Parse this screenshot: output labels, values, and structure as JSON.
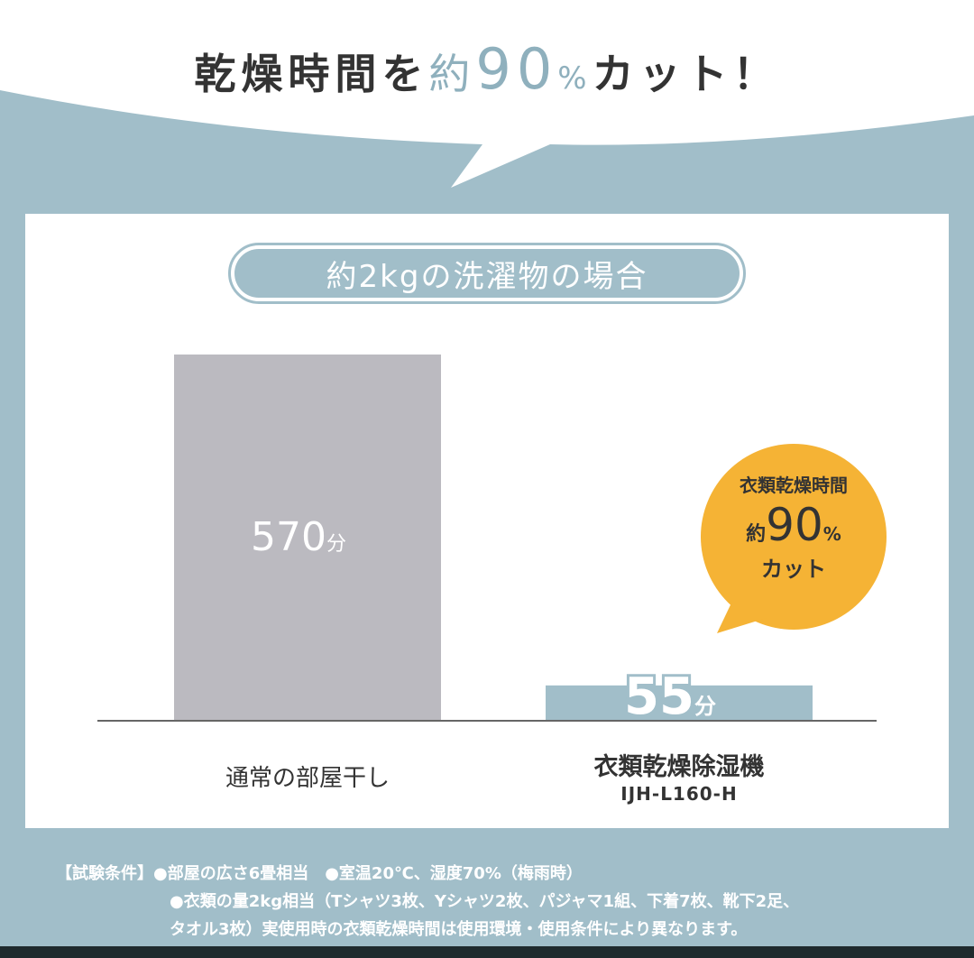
{
  "headline": {
    "prefix": "乾燥時間を",
    "approx": "約",
    "number": "90",
    "percent": "%",
    "suffix": "カット！"
  },
  "condition_label": "約2kgの洗濯物の場合",
  "chart_data": {
    "type": "bar",
    "categories": [
      "通常の部屋干し",
      "衣類乾燥除湿機"
    ],
    "category_sublabels": [
      "",
      "IJH-L160-H"
    ],
    "values": [
      570,
      55
    ],
    "unit": "分",
    "value_labels": [
      "570",
      "55"
    ],
    "colors": [
      "#bbbac0",
      "#a1bec9"
    ],
    "ylim": [
      0,
      570
    ],
    "grid": false
  },
  "callout": {
    "line1": "衣類乾燥時間",
    "approx": "約",
    "number": "90",
    "percent": "%",
    "line3": "カット",
    "color": "#f5b335"
  },
  "footnote": {
    "label": "【試験条件】",
    "line1": "●部屋の広さ6畳相当　●室温20℃、湿度70%（梅雨時）",
    "line2": "●衣類の量2kg相当（Tシャツ3枚、Yシャツ2枚、パジャマ1組、下着7枚、靴下2足、",
    "line3": "タオル3枚）実使用時の衣類乾燥時間は使用環境・使用条件により異なります。"
  },
  "colors": {
    "background": "#a1bec9",
    "accent": "#8fb0bd",
    "text": "#333333"
  }
}
